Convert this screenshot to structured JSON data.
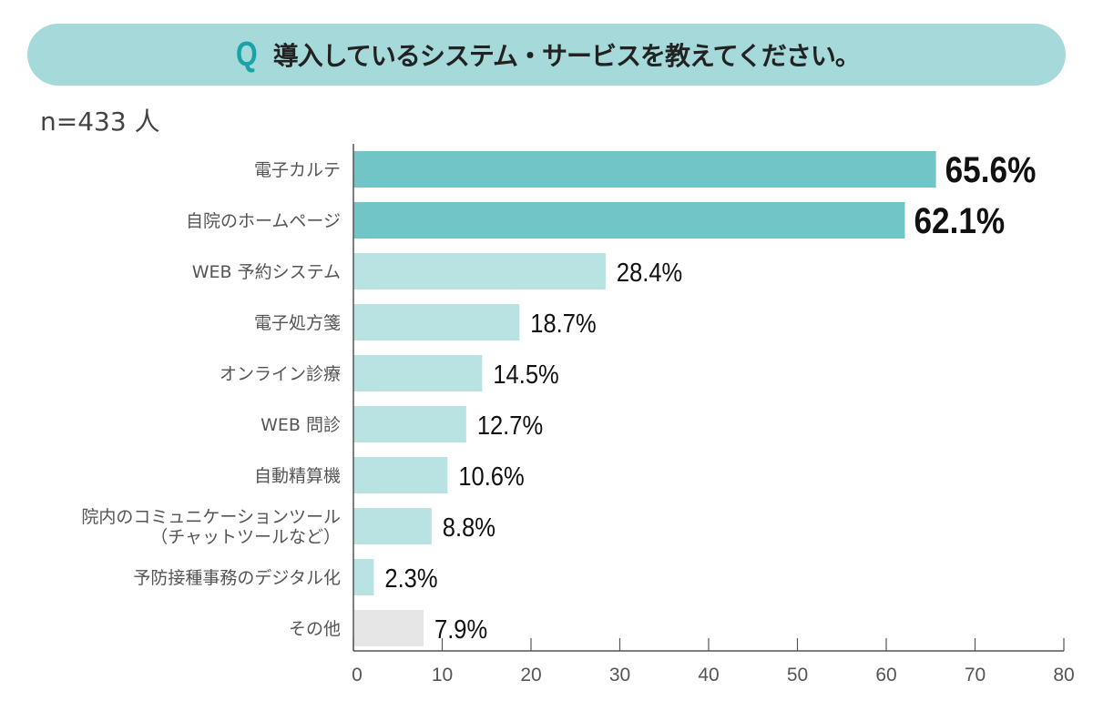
{
  "header": {
    "q_mark": "Q",
    "question": "導入しているシステム・サービスを教えてください。"
  },
  "sample": "n=433 人",
  "colors": {
    "banner": "#a6d9da",
    "q_mark": "#1aa3a6",
    "top_bar": "#72c5c6",
    "normal_bar": "#b9e2e3",
    "other_bar": "#e6e6e6",
    "axis": "#555555"
  },
  "chart_data": {
    "type": "bar",
    "orientation": "horizontal",
    "title": "導入しているシステム・サービスを教えてください。",
    "xlabel": "",
    "ylabel": "",
    "xlim": [
      0,
      80
    ],
    "xticks": [
      0,
      10,
      20,
      30,
      40,
      50,
      60,
      70,
      80
    ],
    "grid": false,
    "categories": [
      [
        "電子カルテ"
      ],
      [
        "自院のホームページ"
      ],
      [
        "WEB 予約システム"
      ],
      [
        "電子処方箋"
      ],
      [
        "オンライン診療"
      ],
      [
        "WEB 問診"
      ],
      [
        "自動精算機"
      ],
      [
        "院内のコミュニケーションツール",
        "（チャットツールなど）"
      ],
      [
        "予防接種事務のデジタル化"
      ],
      [
        "その他"
      ]
    ],
    "values": [
      65.6,
      62.1,
      28.4,
      18.7,
      14.5,
      12.7,
      10.6,
      8.8,
      2.3,
      7.9
    ],
    "value_labels": [
      "65.6%",
      "62.1%",
      "28.4%",
      "18.7%",
      "14.5%",
      "12.7%",
      "10.6%",
      "8.8%",
      "2.3%",
      "7.9%"
    ],
    "highlight": [
      "top",
      "top",
      "normal",
      "normal",
      "normal",
      "normal",
      "normal",
      "normal",
      "normal",
      "other"
    ]
  }
}
